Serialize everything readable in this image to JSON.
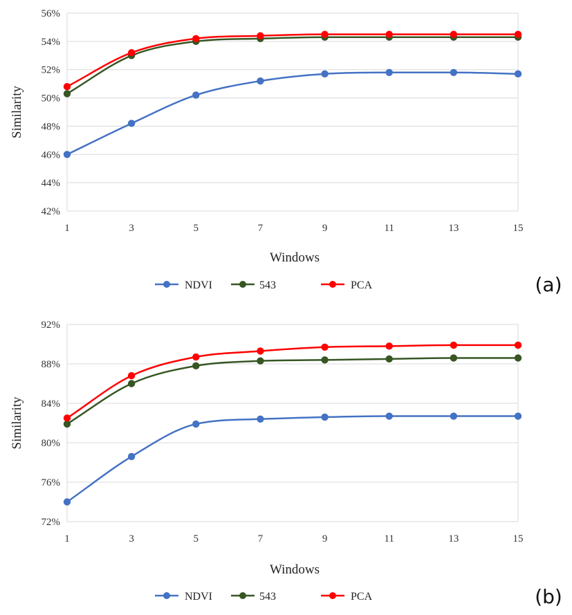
{
  "colors": {
    "NDVI": "#4472c4",
    "543": "#375623",
    "PCA": "#ff0000"
  },
  "chart_data": [
    {
      "type": "line",
      "panel_label": "(a)",
      "xlabel": "Windows",
      "ylabel": "Similarity",
      "x": [
        1,
        3,
        5,
        7,
        9,
        11,
        13,
        15
      ],
      "x_tick_labels": [
        "1",
        "3",
        "5",
        "7",
        "9",
        "11",
        "13",
        "15"
      ],
      "ylim": [
        42,
        56
      ],
      "y_ticks": [
        42,
        44,
        46,
        48,
        50,
        52,
        54,
        56
      ],
      "y_tick_labels": [
        "42%",
        "44%",
        "46%",
        "48%",
        "50%",
        "52%",
        "54%",
        "56%"
      ],
      "grid": true,
      "legend_position": "bottom",
      "series": [
        {
          "name": "NDVI",
          "values": [
            46.0,
            48.2,
            50.2,
            51.2,
            51.7,
            51.8,
            51.8,
            51.7
          ]
        },
        {
          "name": "543",
          "values": [
            50.3,
            53.0,
            54.0,
            54.2,
            54.3,
            54.3,
            54.3,
            54.3
          ]
        },
        {
          "name": "PCA",
          "values": [
            50.8,
            53.2,
            54.2,
            54.4,
            54.5,
            54.5,
            54.5,
            54.5
          ]
        }
      ]
    },
    {
      "type": "line",
      "panel_label": "(b)",
      "xlabel": "Windows",
      "ylabel": "Similarity",
      "x": [
        1,
        3,
        5,
        7,
        9,
        11,
        13,
        15
      ],
      "x_tick_labels": [
        "1",
        "3",
        "5",
        "7",
        "9",
        "11",
        "13",
        "15"
      ],
      "ylim": [
        72,
        92
      ],
      "y_ticks": [
        72,
        76,
        80,
        84,
        88,
        92
      ],
      "y_tick_labels": [
        "72%",
        "76%",
        "80%",
        "84%",
        "88%",
        "92%"
      ],
      "grid": true,
      "legend_position": "bottom",
      "series": [
        {
          "name": "NDVI",
          "values": [
            74.0,
            78.6,
            81.9,
            82.4,
            82.6,
            82.7,
            82.7,
            82.7
          ]
        },
        {
          "name": "543",
          "values": [
            81.9,
            86.0,
            87.8,
            88.3,
            88.4,
            88.5,
            88.6,
            88.6
          ]
        },
        {
          "name": "PCA",
          "values": [
            82.5,
            86.8,
            88.7,
            89.3,
            89.7,
            89.8,
            89.9,
            89.9
          ]
        }
      ]
    }
  ]
}
